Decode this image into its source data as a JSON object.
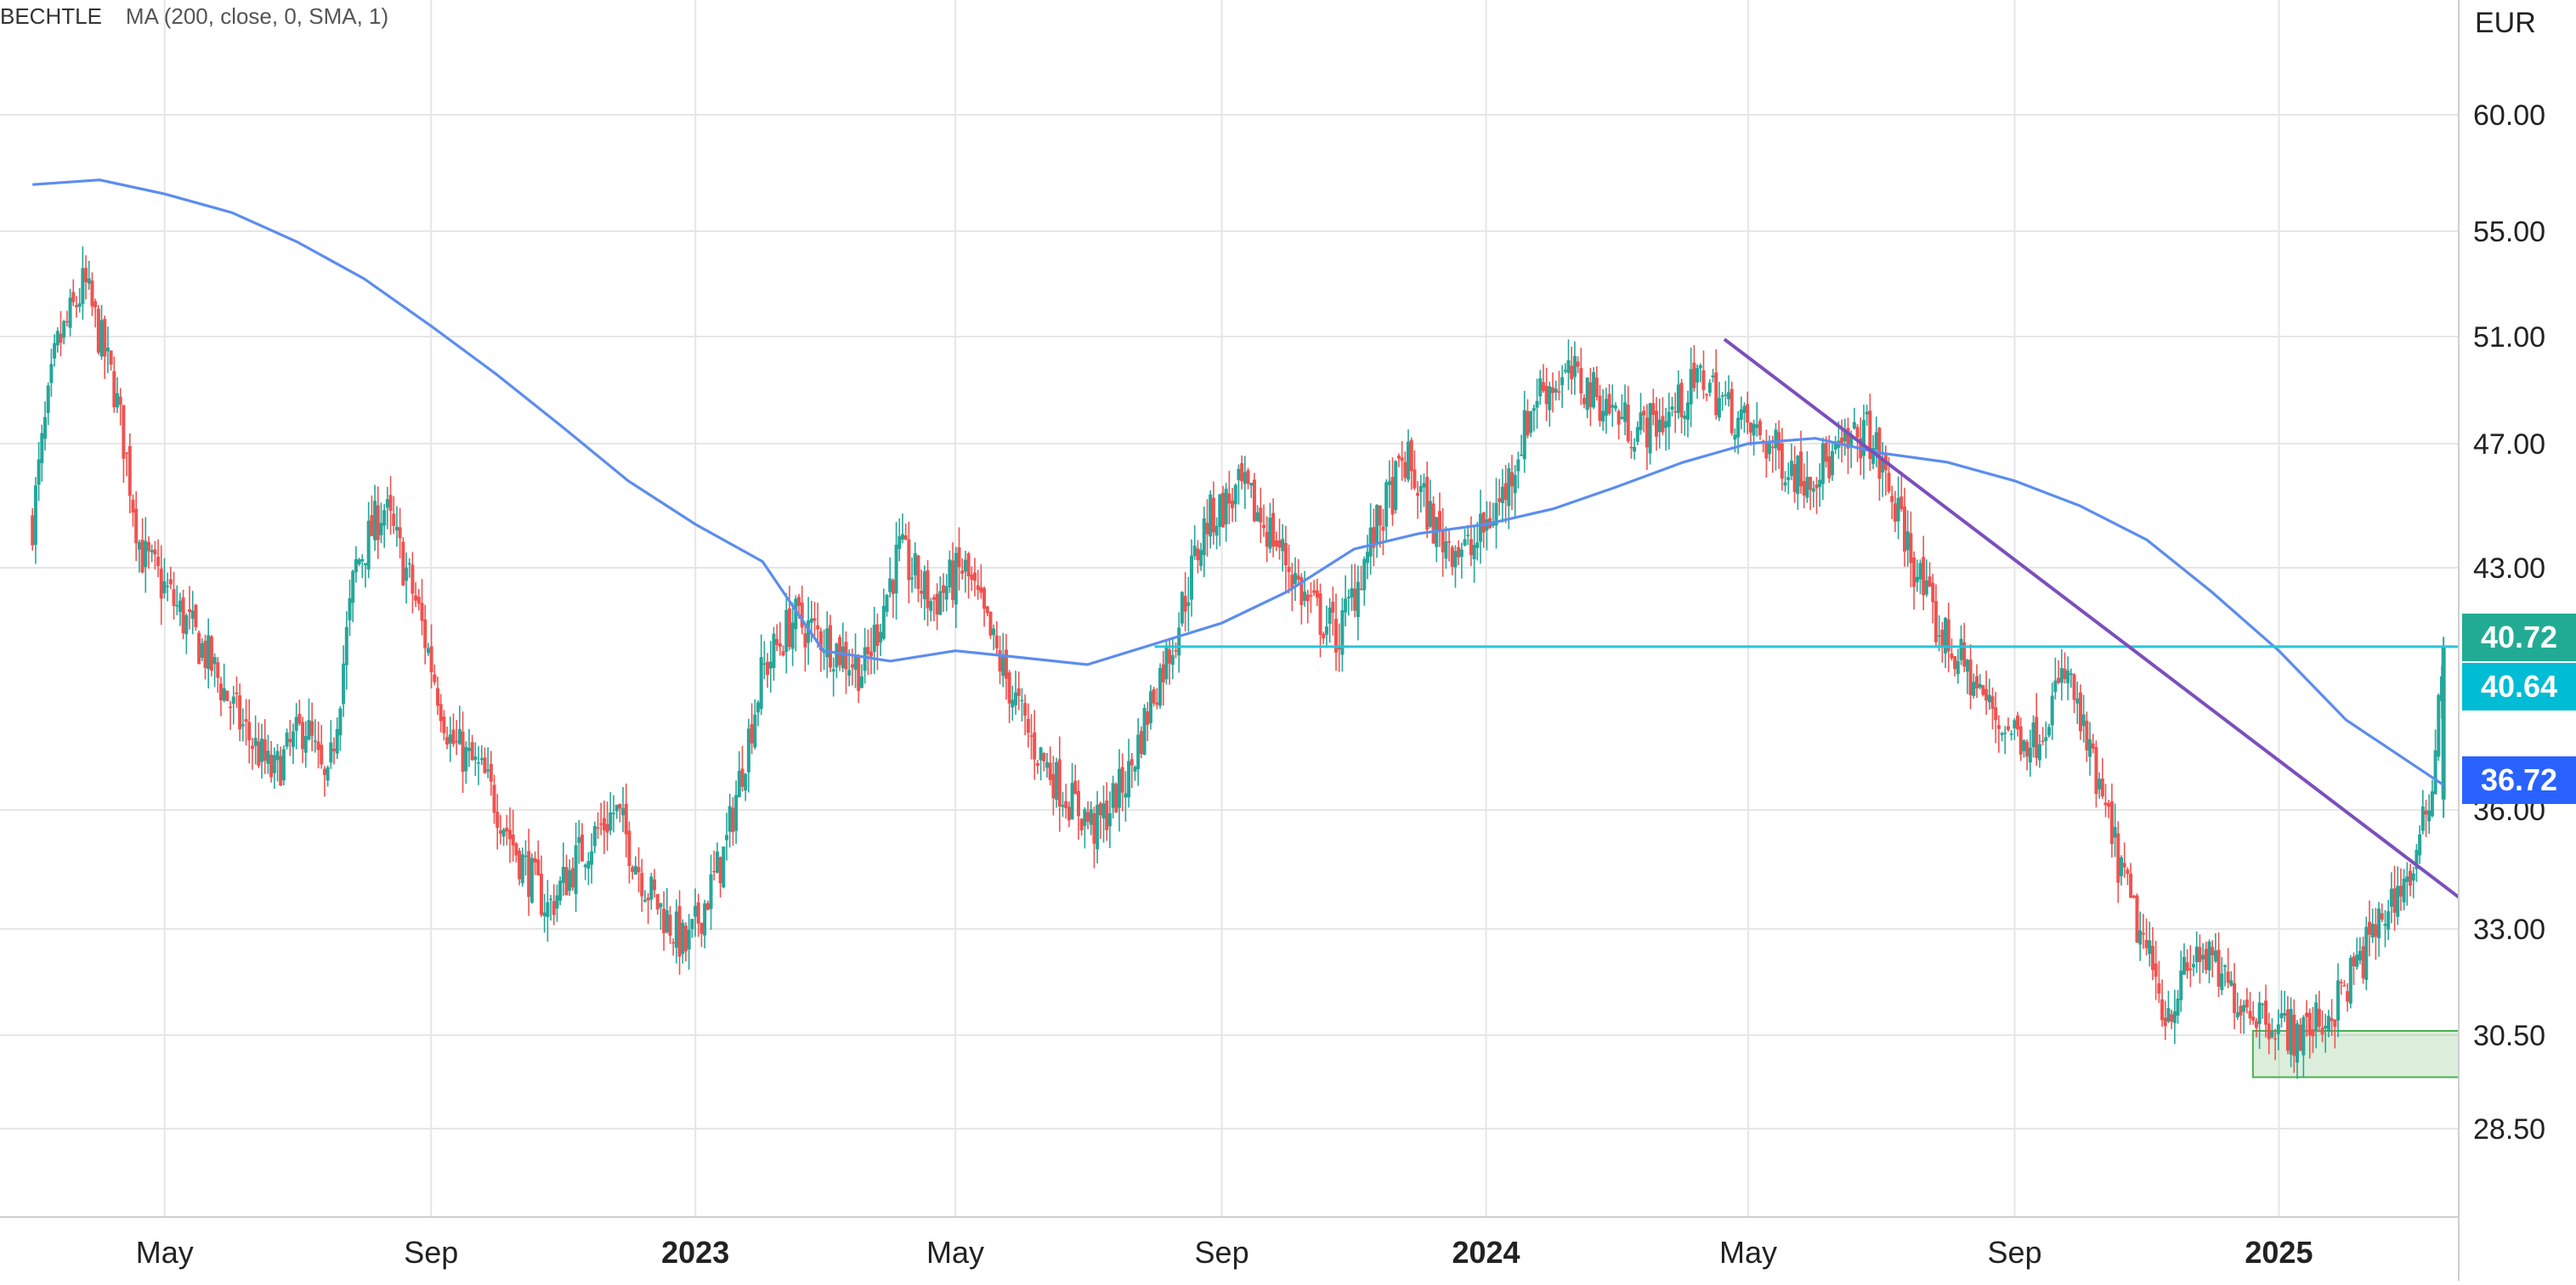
{
  "legend": {
    "symbol": "BECHTLE",
    "study": "MA (200, close, 0, SMA, 1)"
  },
  "chart_data": {
    "type": "candlestick",
    "currency": "EUR",
    "y_ticks": [
      "28.50",
      "30.50",
      "33.00",
      "36.00",
      "43.00",
      "47.00",
      "51.00",
      "55.00",
      "60.00"
    ],
    "y_tick_values": [
      28.5,
      30.5,
      33.0,
      36.0,
      43.0,
      47.0,
      51.0,
      55.0,
      60.0
    ],
    "x_ticks": [
      "May",
      "Sep",
      "2023",
      "May",
      "Sep",
      "2024",
      "May",
      "Sep",
      "2025"
    ],
    "x_tick_dates": [
      "2022-05-01",
      "2022-09-01",
      "2023-01-01",
      "2023-05-01",
      "2023-09-01",
      "2024-01-01",
      "2024-05-01",
      "2024-09-01",
      "2025-01-01"
    ],
    "x_range": [
      "2022-03-01",
      "2025-03-25"
    ],
    "price_series": {
      "dates": [
        "2022-03-01",
        "2022-03-12",
        "2022-03-25",
        "2022-04-08",
        "2022-04-20",
        "2022-05-05",
        "2022-05-20",
        "2022-06-05",
        "2022-06-20",
        "2022-07-05",
        "2022-07-15",
        "2022-07-28",
        "2022-08-10",
        "2022-08-25",
        "2022-09-10",
        "2022-09-25",
        "2022-10-10",
        "2022-10-25",
        "2022-11-10",
        "2022-11-25",
        "2022-12-10",
        "2022-12-28",
        "2023-01-15",
        "2023-02-01",
        "2023-02-15",
        "2023-03-01",
        "2023-03-20",
        "2023-04-05",
        "2023-04-20",
        "2023-05-05",
        "2023-05-20",
        "2023-06-05",
        "2023-06-20",
        "2023-07-05",
        "2023-07-20",
        "2023-08-01",
        "2023-08-10",
        "2023-08-25",
        "2023-09-10",
        "2023-09-25",
        "2023-10-10",
        "2023-10-25",
        "2023-11-10",
        "2023-11-25",
        "2023-12-10",
        "2023-12-25",
        "2024-01-10",
        "2024-01-25",
        "2024-02-10",
        "2024-02-25",
        "2024-03-10",
        "2024-03-25",
        "2024-04-10",
        "2024-04-25",
        "2024-05-10",
        "2024-05-25",
        "2024-06-10",
        "2024-06-25",
        "2024-07-10",
        "2024-07-25",
        "2024-08-10",
        "2024-08-25",
        "2024-09-10",
        "2024-09-25",
        "2024-10-10",
        "2024-10-25",
        "2024-11-10",
        "2024-11-25",
        "2024-12-10",
        "2024-12-25",
        "2025-01-10",
        "2025-01-25",
        "2025-02-10",
        "2025-02-25",
        "2025-03-05",
        "2025-03-12",
        "2025-03-18"
      ],
      "close": [
        44.5,
        50.5,
        53.0,
        49.0,
        43.5,
        42.0,
        40.5,
        38.5,
        37.0,
        38.5,
        36.5,
        43.0,
        45.0,
        42.0,
        38.0,
        37.0,
        35.0,
        33.5,
        35.0,
        36.0,
        34.0,
        32.5,
        35.0,
        40.0,
        41.5,
        41.0,
        40.0,
        43.5,
        42.0,
        43.0,
        40.5,
        38.0,
        36.5,
        35.5,
        37.0,
        39.5,
        41.0,
        44.5,
        45.5,
        44.0,
        42.0,
        41.0,
        44.0,
        46.5,
        44.0,
        43.5,
        45.5,
        49.0,
        49.5,
        48.5,
        47.5,
        48.0,
        49.5,
        48.0,
        47.0,
        46.0,
        46.5,
        47.5,
        44.5,
        41.5,
        40.0,
        38.5,
        38.0,
        40.0,
        36.5,
        33.5,
        31.0,
        32.5,
        31.5,
        31.0,
        30.5,
        31.0,
        32.5,
        34.0,
        34.5,
        36.5,
        40.72
      ]
    },
    "ma200": {
      "name": "MA (200, close, 0, SMA, 1)",
      "dates": [
        "2022-03-01",
        "2022-04-01",
        "2022-05-01",
        "2022-06-01",
        "2022-07-01",
        "2022-08-01",
        "2022-09-01",
        "2022-10-01",
        "2022-11-01",
        "2022-12-01",
        "2023-01-01",
        "2023-02-01",
        "2023-03-01",
        "2023-04-01",
        "2023-05-01",
        "2023-06-01",
        "2023-07-01",
        "2023-08-01",
        "2023-09-01",
        "2023-10-01",
        "2023-11-01",
        "2023-12-01",
        "2024-01-01",
        "2024-02-01",
        "2024-03-01",
        "2024-04-01",
        "2024-05-01",
        "2024-06-01",
        "2024-07-01",
        "2024-08-01",
        "2024-09-01",
        "2024-10-01",
        "2024-11-01",
        "2024-12-01",
        "2025-01-01",
        "2025-02-01",
        "2025-03-18"
      ],
      "values": [
        57.0,
        57.2,
        56.6,
        55.8,
        54.6,
        53.2,
        51.4,
        49.6,
        47.6,
        45.8,
        44.4,
        43.2,
        40.6,
        40.3,
        40.6,
        40.4,
        40.2,
        40.8,
        41.4,
        42.3,
        43.6,
        44.1,
        44.4,
        44.9,
        45.6,
        46.4,
        47.0,
        47.2,
        46.7,
        46.4,
        45.8,
        45.0,
        43.9,
        42.3,
        40.6,
        38.6,
        36.72
      ]
    },
    "lines": [
      {
        "kind": "horizontal",
        "value": 40.72,
        "from": "2023-08-01",
        "to": "2025-03-25",
        "color": "#26c6da"
      },
      {
        "kind": "trendline",
        "from": [
          "2024-04-20",
          50.9
        ],
        "to": [
          "2025-03-25",
          33.8
        ],
        "color": "#7b4fbd"
      }
    ],
    "zone": {
      "from": [
        "2024-12-20",
        30.6
      ],
      "to": [
        "2025-03-25",
        29.6
      ],
      "color": "#4caf50"
    },
    "price_labels": [
      {
        "text": "40.72",
        "value": 40.72,
        "color": "#22ab94"
      },
      {
        "text": "40.64",
        "value": 40.64,
        "color": "#00bcd4"
      },
      {
        "text": "36.72",
        "value": 36.72,
        "color": "#2962ff"
      }
    ],
    "colors": {
      "up": "#26a69a",
      "down": "#ef5350",
      "ma": "#5b8def",
      "grid": "#e6e6e6",
      "axis": "#cfcfcf"
    }
  }
}
